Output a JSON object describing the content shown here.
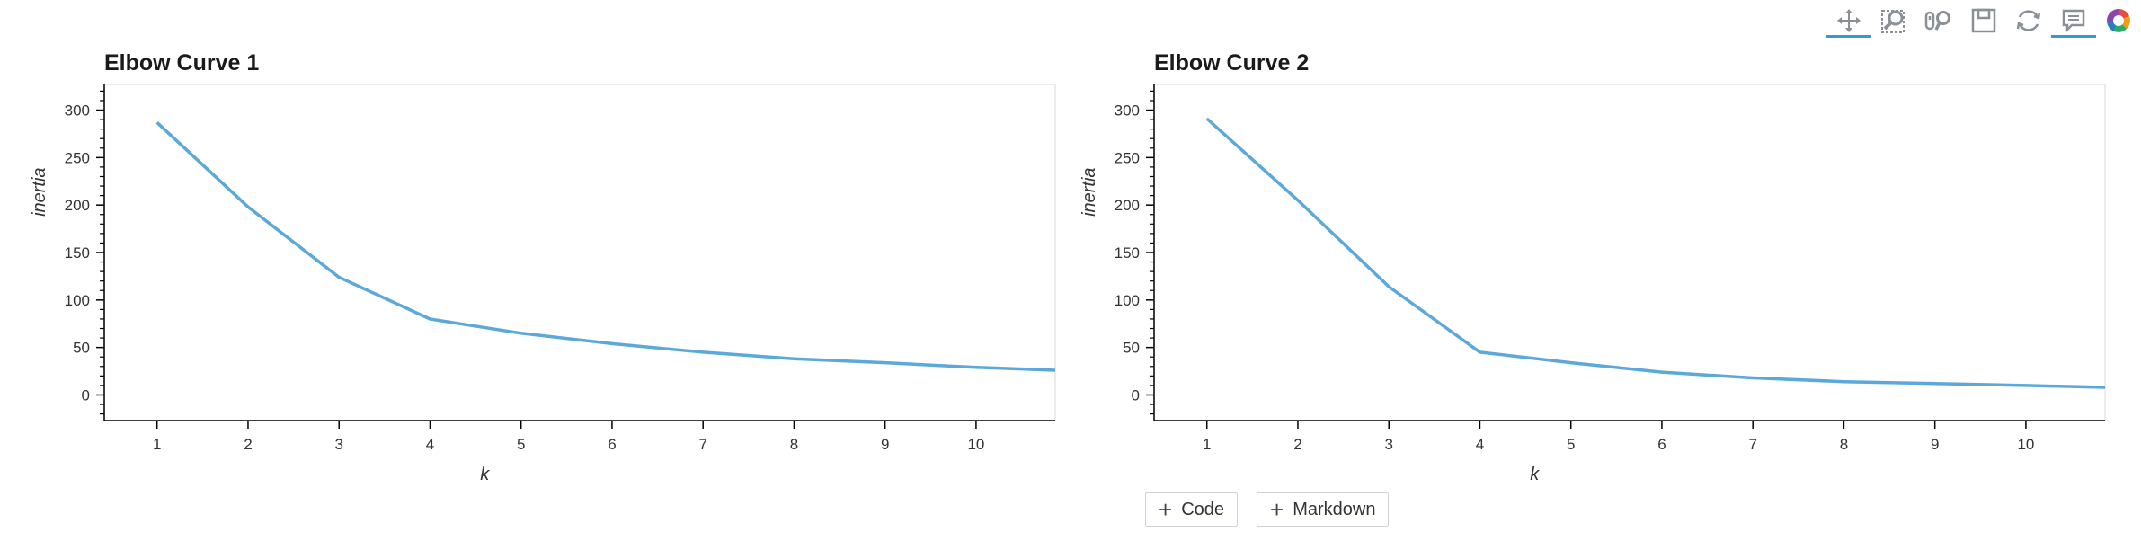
{
  "chart_data": [
    {
      "type": "line",
      "title": "Elbow Curve 1",
      "xlabel": "k",
      "ylabel": "inertia",
      "x": [
        1,
        2,
        3,
        4,
        5,
        6,
        7,
        8,
        9,
        10,
        10.87
      ],
      "y": [
        287,
        198,
        124,
        80,
        65,
        54,
        45,
        38,
        34,
        29,
        26
      ],
      "xticks": [
        1,
        2,
        3,
        4,
        5,
        6,
        7,
        8,
        9,
        10
      ],
      "yticks": [
        0,
        50,
        100,
        150,
        200,
        250,
        300
      ],
      "xlim": [
        0.42,
        10.87
      ],
      "ylim": [
        -27,
        327
      ],
      "color": "#5ba8da",
      "grid": false
    },
    {
      "type": "line",
      "title": "Elbow Curve 2",
      "xlabel": "k",
      "ylabel": "inertia",
      "x": [
        1,
        2,
        3,
        4,
        5,
        6,
        7,
        8,
        9,
        10,
        10.87
      ],
      "y": [
        291,
        205,
        114,
        45,
        34,
        24,
        18,
        14,
        12,
        10,
        8
      ],
      "xticks": [
        1,
        2,
        3,
        4,
        5,
        6,
        7,
        8,
        9,
        10
      ],
      "yticks": [
        0,
        50,
        100,
        150,
        200,
        250,
        300
      ],
      "xlim": [
        0.42,
        10.87
      ],
      "ylim": [
        -27,
        327
      ],
      "color": "#5ba8da",
      "grid": false
    }
  ],
  "toolbar": {
    "tools": [
      {
        "name": "pan-icon",
        "active": true
      },
      {
        "name": "box-zoom-icon",
        "active": false
      },
      {
        "name": "wheel-zoom-icon",
        "active": false
      },
      {
        "name": "save-icon",
        "active": false
      },
      {
        "name": "reset-icon",
        "active": false
      },
      {
        "name": "hover-icon",
        "active": true
      },
      {
        "name": "bokeh-logo-icon",
        "active": false
      }
    ]
  },
  "notebook": {
    "code_label": "Code",
    "markdown_label": "Markdown"
  }
}
